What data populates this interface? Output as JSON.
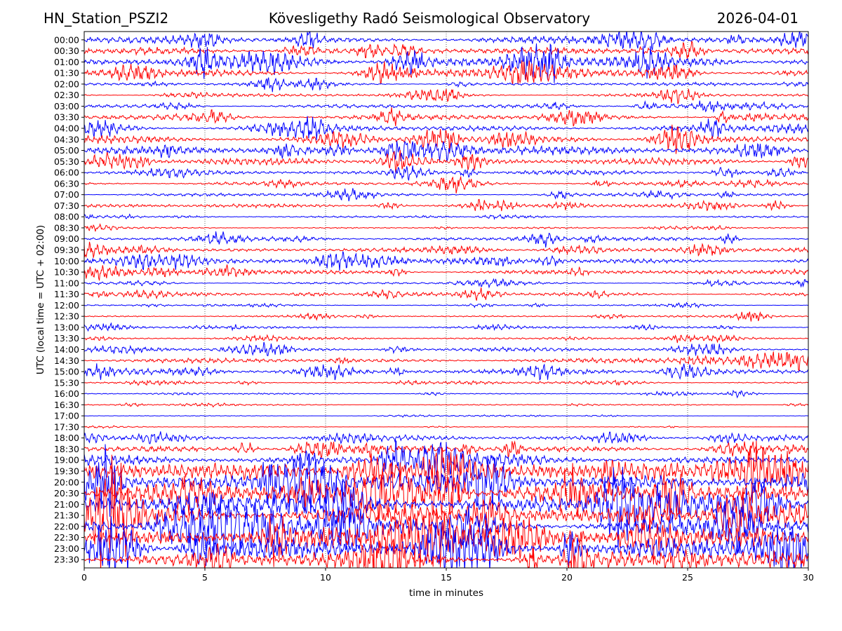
{
  "header": {
    "station": "HN_Station_PSZI2",
    "observatory": "Kövesligethy Radó Seismological Observatory",
    "date": "2026-04-01"
  },
  "chart_data": {
    "type": "line",
    "xlabel": "time in minutes",
    "ylabel": "UTC (local time = UTC + 02:00)",
    "xlim": [
      0,
      30
    ],
    "xticks": [
      "0",
      "5",
      "10",
      "15",
      "20",
      "25",
      "30"
    ],
    "grid": "vertical dotted lines at 5-minute intervals",
    "rows": [
      "00:00",
      "00:30",
      "01:00",
      "01:30",
      "02:00",
      "02:30",
      "03:00",
      "03:30",
      "04:00",
      "04:30",
      "05:00",
      "05:30",
      "06:00",
      "06:30",
      "07:00",
      "07:30",
      "08:00",
      "08:30",
      "09:00",
      "09:30",
      "10:00",
      "10:30",
      "11:00",
      "11:30",
      "12:00",
      "12:30",
      "13:00",
      "13:30",
      "14:00",
      "14:30",
      "15:00",
      "15:30",
      "16:00",
      "16:30",
      "17:00",
      "17:30",
      "18:00",
      "18:30",
      "19:00",
      "19:30",
      "20:00",
      "20:30",
      "21:00",
      "21:30",
      "22:00",
      "22:30",
      "23:00",
      "23:30"
    ],
    "row_colors": [
      "#0000ff",
      "#ff0000"
    ],
    "relative_amplitude": [
      0.55,
      0.55,
      0.9,
      0.6,
      0.25,
      0.25,
      0.3,
      0.45,
      0.5,
      0.55,
      0.65,
      0.5,
      0.35,
      0.3,
      0.25,
      0.3,
      0.12,
      0.12,
      0.3,
      0.35,
      0.45,
      0.35,
      0.2,
      0.3,
      0.12,
      0.15,
      0.2,
      0.2,
      0.3,
      0.35,
      0.45,
      0.15,
      0.1,
      0.1,
      0.05,
      0.05,
      0.4,
      0.6,
      0.8,
      1.4,
      1.6,
      1.6,
      1.7,
      1.6,
      1.6,
      1.5,
      1.6,
      1.4
    ]
  }
}
